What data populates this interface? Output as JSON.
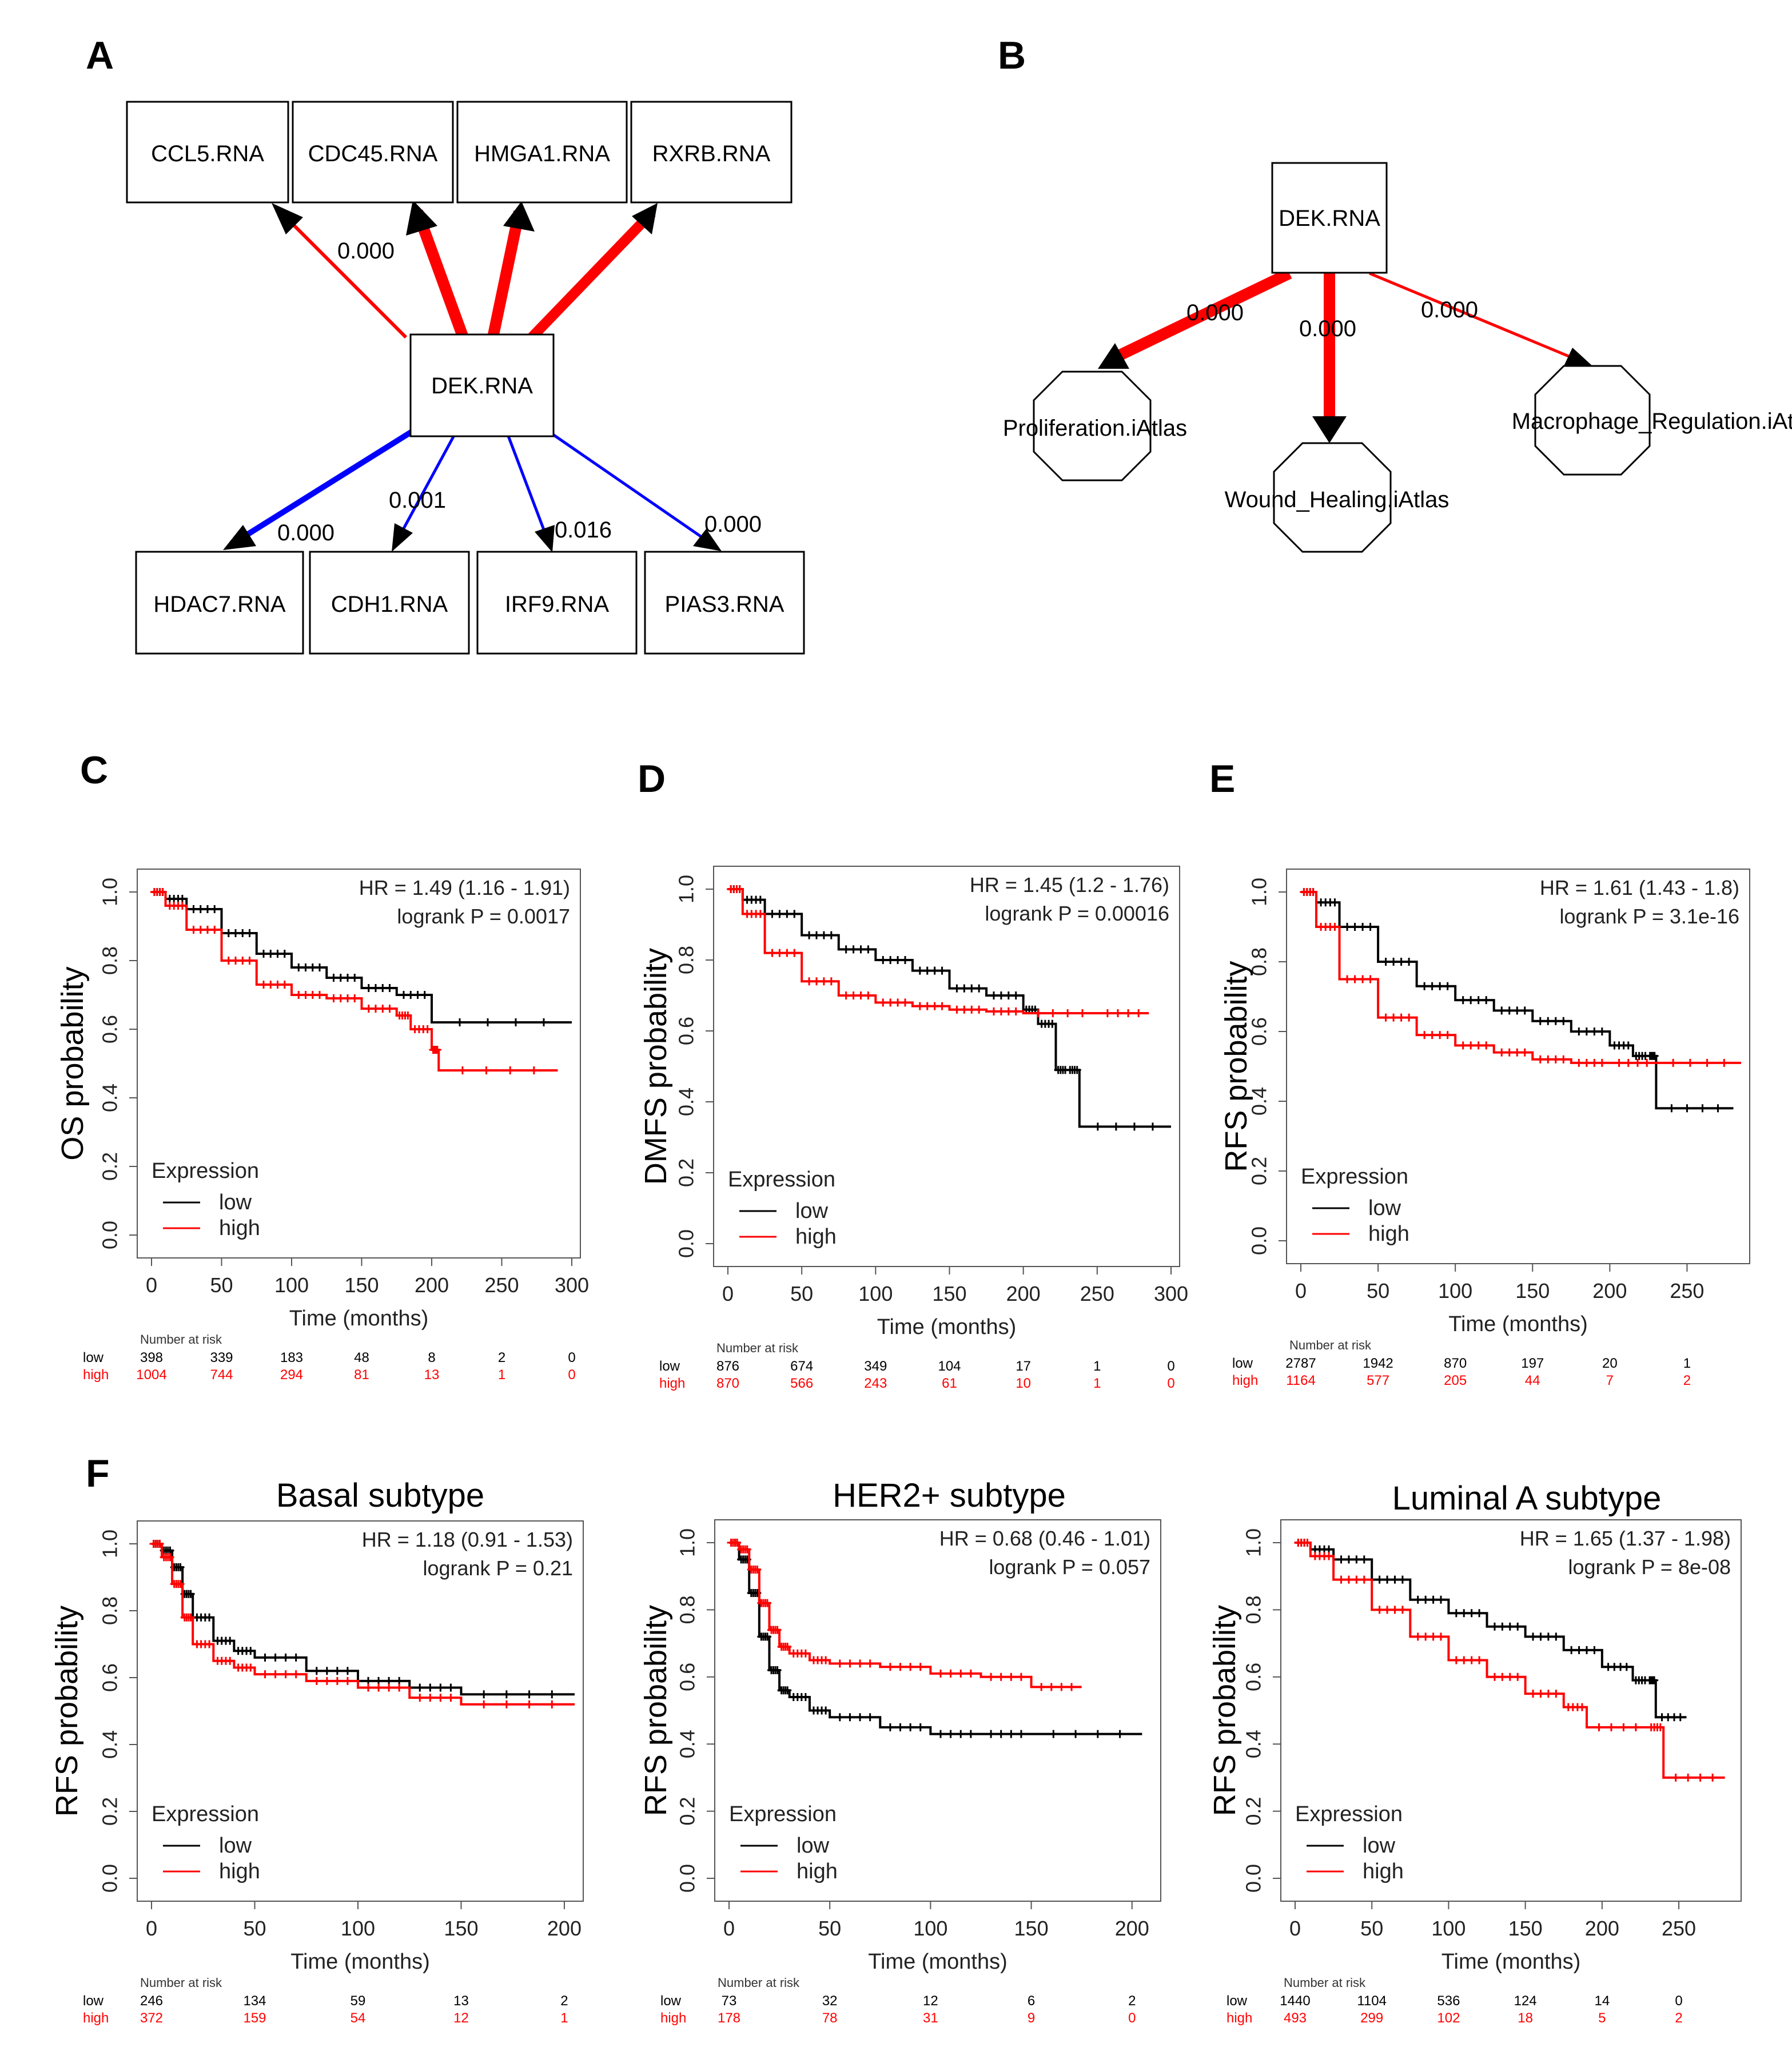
{
  "panel_labels": [
    "A",
    "B",
    "C",
    "D",
    "E",
    "F"
  ],
  "network_a": {
    "center": "DEK.RNA",
    "targets": [
      {
        "label": "CCL5.RNA",
        "edge_label": "0.000",
        "color": "#ff0000",
        "weight": "thin"
      },
      {
        "label": "CDC45.RNA",
        "edge_label": "",
        "color": "#ff0000",
        "weight": "thick"
      },
      {
        "label": "HMGA1.RNA",
        "edge_label": "",
        "color": "#ff0000",
        "weight": "thick"
      },
      {
        "label": "RXRB.RNA",
        "edge_label": "",
        "color": "#ff0000",
        "weight": "thick"
      },
      {
        "label": "HDAC7.RNA",
        "edge_label": "0.000",
        "color": "#0000ff",
        "weight": "medium"
      },
      {
        "label": "CDH1.RNA",
        "edge_label": "0.001",
        "color": "#0000ff",
        "weight": "thin"
      },
      {
        "label": "IRF9.RNA",
        "edge_label": "0.016",
        "color": "#0000ff",
        "weight": "thin"
      },
      {
        "label": "PIAS3.RNA",
        "edge_label": "0.000",
        "color": "#0000ff",
        "weight": "thin"
      }
    ]
  },
  "network_b": {
    "center": "DEK.RNA",
    "targets": [
      {
        "label": "Proliferation.iAtlas",
        "edge_label": "0.000",
        "color": "#ff0000",
        "weight": "thick"
      },
      {
        "label": "Wound_Healing.iAtlas",
        "edge_label": "0.000",
        "color": "#ff0000",
        "weight": "thick"
      },
      {
        "label": "Macrophage_Regulation.iAtl",
        "edge_label": "0.000",
        "color": "#ff0000",
        "weight": "thin"
      }
    ]
  },
  "colors": {
    "low": "#000000",
    "high": "#ff0000"
  },
  "chart_data": [
    {
      "type": "line",
      "panel": "C",
      "title": "",
      "xlabel": "Time (months)",
      "ylabel": "OS probability",
      "xlim": [
        0,
        300
      ],
      "ylim": [
        0,
        1
      ],
      "xticks": [
        "0",
        "50",
        "100",
        "150",
        "200",
        "250",
        "300"
      ],
      "yticks": [
        "0.0",
        "0.2",
        "0.4",
        "0.6",
        "0.8",
        "1.0"
      ],
      "hr_text": "HR = 1.49 (1.16 - 1.91)",
      "p_text": "logrank P = 0.0017",
      "legend_title": "Expression",
      "series": [
        {
          "name": "low",
          "x": [
            0,
            10,
            25,
            50,
            75,
            100,
            125,
            150,
            175,
            200,
            300
          ],
          "y": [
            1.0,
            0.98,
            0.95,
            0.88,
            0.82,
            0.78,
            0.75,
            0.72,
            0.7,
            0.62,
            0.62
          ]
        },
        {
          "name": "high",
          "x": [
            0,
            10,
            25,
            50,
            75,
            100,
            125,
            150,
            175,
            185,
            200,
            205,
            290
          ],
          "y": [
            1.0,
            0.96,
            0.89,
            0.8,
            0.73,
            0.7,
            0.69,
            0.66,
            0.64,
            0.6,
            0.54,
            0.48,
            0.48
          ]
        }
      ],
      "risk_header": "Number at risk",
      "risk_low_label": "low",
      "risk_high_label": "high",
      "risk_low": [
        "398",
        "339",
        "183",
        "48",
        "8",
        "2",
        "0"
      ],
      "risk_high": [
        "1004",
        "744",
        "294",
        "81",
        "13",
        "1",
        "0"
      ]
    },
    {
      "type": "line",
      "panel": "D",
      "title": "",
      "xlabel": "Time (months)",
      "ylabel": "DMFS probability",
      "xlim": [
        0,
        300
      ],
      "ylim": [
        0,
        1
      ],
      "xticks": [
        "0",
        "50",
        "100",
        "150",
        "200",
        "250",
        "300"
      ],
      "yticks": [
        "0.0",
        "0.2",
        "0.4",
        "0.6",
        "0.8",
        "1.0"
      ],
      "hr_text": "HR = 1.45 (1.2 - 1.76)",
      "p_text": "logrank P = 0.00016",
      "legend_title": "Expression",
      "series": [
        {
          "name": "low",
          "x": [
            0,
            10,
            25,
            50,
            75,
            100,
            125,
            150,
            175,
            200,
            210,
            222,
            230,
            238,
            300
          ],
          "y": [
            1.0,
            0.97,
            0.93,
            0.87,
            0.83,
            0.8,
            0.77,
            0.72,
            0.7,
            0.66,
            0.62,
            0.49,
            0.49,
            0.33,
            0.33
          ]
        },
        {
          "name": "high",
          "x": [
            0,
            10,
            25,
            50,
            75,
            100,
            125,
            150,
            175,
            200,
            250,
            285
          ],
          "y": [
            1.0,
            0.93,
            0.82,
            0.74,
            0.7,
            0.68,
            0.67,
            0.66,
            0.655,
            0.65,
            0.65,
            0.65
          ]
        }
      ],
      "risk_header": "Number at risk",
      "risk_low_label": "low",
      "risk_high_label": "high",
      "risk_low": [
        "876",
        "674",
        "349",
        "104",
        "17",
        "1",
        "0"
      ],
      "risk_high": [
        "870",
        "566",
        "243",
        "61",
        "10",
        "1",
        "0"
      ]
    },
    {
      "type": "line",
      "panel": "E",
      "title": "",
      "xlabel": "Time (months)",
      "ylabel": "RFS probability",
      "xlim": [
        0,
        285
      ],
      "ylim": [
        0,
        1
      ],
      "xticks": [
        "0",
        "50",
        "100",
        "150",
        "200",
        "250"
      ],
      "yticks": [
        "0.0",
        "0.2",
        "0.4",
        "0.6",
        "0.8",
        "1.0"
      ],
      "hr_text": "HR = 1.61 (1.43 - 1.8)",
      "p_text": "logrank P = 3.1e-16",
      "legend_title": "Expression",
      "series": [
        {
          "name": "low",
          "x": [
            0,
            10,
            25,
            50,
            75,
            100,
            125,
            150,
            175,
            200,
            215,
            225,
            230,
            280
          ],
          "y": [
            1.0,
            0.97,
            0.9,
            0.8,
            0.73,
            0.69,
            0.66,
            0.63,
            0.6,
            0.56,
            0.53,
            0.53,
            0.38,
            0.38
          ]
        },
        {
          "name": "high",
          "x": [
            0,
            10,
            25,
            50,
            75,
            100,
            125,
            150,
            175,
            200,
            230,
            285
          ],
          "y": [
            1.0,
            0.9,
            0.75,
            0.64,
            0.59,
            0.56,
            0.54,
            0.52,
            0.51,
            0.51,
            0.51,
            0.51
          ]
        }
      ],
      "risk_header": "Number at risk",
      "risk_low_label": "low",
      "risk_high_label": "high",
      "risk_low": [
        "2787",
        "1942",
        "870",
        "197",
        "20",
        "1"
      ],
      "risk_high": [
        "1164",
        "577",
        "205",
        "44",
        "7",
        "2"
      ]
    },
    {
      "type": "line",
      "panel": "F-basal",
      "title": "Basal subtype",
      "xlabel": "Time (months)",
      "ylabel": "RFS probability",
      "xlim": [
        0,
        205
      ],
      "ylim": [
        0,
        1
      ],
      "xticks": [
        "0",
        "50",
        "100",
        "150",
        "200"
      ],
      "yticks": [
        "0.0",
        "0.2",
        "0.4",
        "0.6",
        "0.8",
        "1.0"
      ],
      "hr_text": "HR = 1.18 (0.91 - 1.53)",
      "p_text": "logrank P = 0.21",
      "legend_title": "Expression",
      "series": [
        {
          "name": "low",
          "x": [
            0,
            5,
            10,
            15,
            20,
            30,
            40,
            50,
            75,
            100,
            125,
            150,
            205
          ],
          "y": [
            1.0,
            0.98,
            0.93,
            0.85,
            0.78,
            0.71,
            0.68,
            0.66,
            0.62,
            0.59,
            0.57,
            0.55,
            0.55
          ]
        },
        {
          "name": "high",
          "x": [
            0,
            5,
            10,
            15,
            20,
            30,
            40,
            50,
            75,
            100,
            125,
            150,
            205
          ],
          "y": [
            1.0,
            0.96,
            0.88,
            0.78,
            0.7,
            0.65,
            0.63,
            0.61,
            0.59,
            0.57,
            0.54,
            0.52,
            0.52
          ]
        }
      ],
      "risk_header": "Number at risk",
      "risk_low_label": "low",
      "risk_high_label": "high",
      "risk_low": [
        "246",
        "134",
        "59",
        "13",
        "2"
      ],
      "risk_high": [
        "372",
        "159",
        "54",
        "12",
        "1"
      ]
    },
    {
      "type": "line",
      "panel": "F-her2",
      "title": "HER2+ subtype",
      "xlabel": "Time (months)",
      "ylabel": "RFS probability",
      "xlim": [
        0,
        210
      ],
      "ylim": [
        0,
        1
      ],
      "xticks": [
        "0",
        "50",
        "100",
        "150",
        "200"
      ],
      "yticks": [
        "0.0",
        "0.2",
        "0.4",
        "0.6",
        "0.8",
        "1.0"
      ],
      "hr_text": "HR = 0.68 (0.46 - 1.01)",
      "p_text": "logrank P = 0.057",
      "legend_title": "Expression",
      "series": [
        {
          "name": "low",
          "x": [
            0,
            5,
            10,
            15,
            20,
            25,
            30,
            40,
            50,
            75,
            100,
            125,
            150,
            205
          ],
          "y": [
            1.0,
            0.95,
            0.85,
            0.72,
            0.62,
            0.56,
            0.54,
            0.5,
            0.48,
            0.45,
            0.43,
            0.43,
            0.43,
            0.43
          ]
        },
        {
          "name": "high",
          "x": [
            0,
            5,
            10,
            15,
            20,
            25,
            30,
            40,
            50,
            75,
            100,
            125,
            150,
            175
          ],
          "y": [
            1.0,
            0.98,
            0.92,
            0.82,
            0.74,
            0.69,
            0.67,
            0.65,
            0.64,
            0.63,
            0.61,
            0.6,
            0.57,
            0.57
          ]
        }
      ],
      "risk_header": "Number at risk",
      "risk_low_label": "low",
      "risk_high_label": "high",
      "risk_low": [
        "73",
        "32",
        "12",
        "6",
        "2"
      ],
      "risk_high": [
        "178",
        "78",
        "31",
        "9",
        "0"
      ]
    },
    {
      "type": "line",
      "panel": "F-luminal-a",
      "title": "Luminal A subtype",
      "xlabel": "Time (months)",
      "ylabel": "RFS probability",
      "xlim": [
        0,
        285
      ],
      "ylim": [
        0,
        1
      ],
      "xticks": [
        "0",
        "50",
        "100",
        "150",
        "200",
        "250"
      ],
      "yticks": [
        "0.0",
        "0.2",
        "0.4",
        "0.6",
        "0.8",
        "1.0"
      ],
      "hr_text": "HR = 1.65 (1.37 - 1.98)",
      "p_text": "logrank P = 8e-08",
      "legend_title": "Expression",
      "series": [
        {
          "name": "low",
          "x": [
            0,
            10,
            25,
            50,
            75,
            100,
            125,
            150,
            175,
            200,
            220,
            230,
            235,
            255
          ],
          "y": [
            1.0,
            0.98,
            0.95,
            0.89,
            0.83,
            0.79,
            0.75,
            0.72,
            0.68,
            0.63,
            0.59,
            0.59,
            0.48,
            0.48
          ]
        },
        {
          "name": "high",
          "x": [
            0,
            10,
            25,
            50,
            75,
            100,
            125,
            150,
            175,
            190,
            230,
            240,
            280
          ],
          "y": [
            1.0,
            0.96,
            0.89,
            0.8,
            0.72,
            0.65,
            0.6,
            0.55,
            0.51,
            0.45,
            0.45,
            0.3,
            0.3
          ]
        }
      ],
      "risk_header": "Number at risk",
      "risk_low_label": "low",
      "risk_high_label": "high",
      "risk_low": [
        "1440",
        "1104",
        "536",
        "124",
        "14",
        "0"
      ],
      "risk_high": [
        "493",
        "299",
        "102",
        "18",
        "5",
        "2"
      ]
    }
  ]
}
